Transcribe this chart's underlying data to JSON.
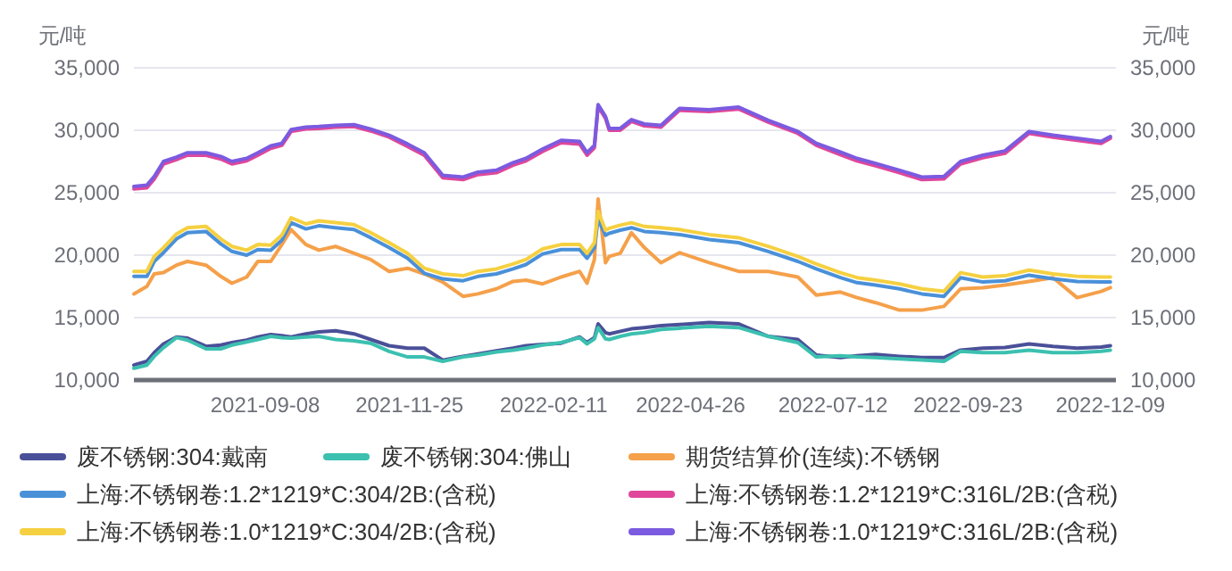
{
  "chart_data": {
    "type": "line",
    "ylabel": "元/吨",
    "y2label": "元/吨",
    "grid": "y",
    "legend": "bottom",
    "x": [
      "2021-06-29",
      "2021-07-06",
      "2021-07-10",
      "2021-07-15",
      "2021-07-22",
      "2021-07-28",
      "2021-08-07",
      "2021-08-15",
      "2021-08-21",
      "2021-08-29",
      "2021-09-04",
      "2021-09-11",
      "2021-09-17",
      "2021-09-22",
      "2021-09-30",
      "2021-10-07",
      "2021-10-16",
      "2021-10-26",
      "2021-11-04",
      "2021-11-14",
      "2021-11-24",
      "2021-12-03",
      "2021-12-13",
      "2021-12-24",
      "2022-01-01",
      "2022-01-11",
      "2022-01-20",
      "2022-01-27",
      "2022-02-05",
      "2022-02-15",
      "2022-02-25",
      "2022-03-01",
      "2022-03-05",
      "2022-03-07",
      "2022-03-11",
      "2022-03-13",
      "2022-03-19",
      "2022-03-25",
      "2022-04-01",
      "2022-04-10",
      "2022-04-20",
      "2022-05-06",
      "2022-05-22",
      "2022-06-07",
      "2022-06-23",
      "2022-07-03",
      "2022-07-16",
      "2022-07-25",
      "2022-08-04",
      "2022-08-17",
      "2022-08-29",
      "2022-09-10",
      "2022-09-19",
      "2022-10-01",
      "2022-10-13",
      "2022-10-26",
      "2022-11-08",
      "2022-11-21",
      "2022-12-04",
      "2022-12-09"
    ],
    "xlim": [
      "2021-06-29",
      "2022-12-12"
    ],
    "xticks": [
      "2021-09-08",
      "2021-11-25",
      "2022-02-11",
      "2022-04-26",
      "2022-07-12",
      "2022-09-23",
      "2022-12-09"
    ],
    "ylim": [
      10000,
      35000
    ],
    "yticks": [
      {
        "value": 10000,
        "label": "10,000"
      },
      {
        "value": 15000,
        "label": "15,000"
      },
      {
        "value": 20000,
        "label": "20,000"
      },
      {
        "value": 25000,
        "label": "25,000"
      },
      {
        "value": 30000,
        "label": "30,000"
      },
      {
        "value": 35000,
        "label": "35,000"
      }
    ],
    "y2lim": [
      10000,
      35000
    ],
    "y2ticks": [
      {
        "value": 10000,
        "label": "10,000"
      },
      {
        "value": 15000,
        "label": "15,000"
      },
      {
        "value": 20000,
        "label": "20,000"
      },
      {
        "value": 25000,
        "label": "25,000"
      },
      {
        "value": 30000,
        "label": "30,000"
      },
      {
        "value": 35000,
        "label": "35,000"
      }
    ],
    "series": [
      {
        "name": "废不锈钢:304:戴南",
        "color": "#4a5098",
        "values": [
          11200,
          11500,
          12200,
          12900,
          13450,
          13350,
          12700,
          12800,
          13000,
          13200,
          13450,
          13650,
          13550,
          13450,
          13700,
          13850,
          13950,
          13700,
          13250,
          12750,
          12550,
          12550,
          11600,
          11900,
          12100,
          12350,
          12550,
          12750,
          12850,
          12950,
          13450,
          13000,
          13400,
          14500,
          13800,
          13700,
          13900,
          14100,
          14200,
          14350,
          14450,
          14600,
          14500,
          13500,
          13250,
          12000,
          11800,
          11950,
          12050,
          11900,
          11800,
          11800,
          12400,
          12550,
          12600,
          12900,
          12700,
          12550,
          12650,
          12750
        ]
      },
      {
        "name": "废不锈钢:304:佛山",
        "color": "#3cc0b0",
        "values": [
          10950,
          11200,
          11900,
          12600,
          13400,
          13200,
          12500,
          12500,
          12800,
          13050,
          13250,
          13500,
          13400,
          13350,
          13450,
          13500,
          13250,
          13150,
          12950,
          12300,
          11850,
          11850,
          11500,
          11850,
          12000,
          12250,
          12400,
          12550,
          12800,
          13000,
          13400,
          12900,
          13300,
          14200,
          13300,
          13250,
          13500,
          13700,
          13800,
          14050,
          14150,
          14300,
          14200,
          13500,
          13000,
          11850,
          11950,
          11850,
          11800,
          11700,
          11600,
          11500,
          12300,
          12200,
          12200,
          12400,
          12200,
          12200,
          12300,
          12400
        ]
      },
      {
        "name": "期货结算价(连续):不锈钢",
        "color": "#f5a04a",
        "values": [
          16900,
          17500,
          18500,
          18600,
          19200,
          19500,
          19200,
          18300,
          17750,
          18250,
          19500,
          19500,
          20850,
          22050,
          20850,
          20400,
          20700,
          20150,
          19650,
          18700,
          18950,
          18500,
          17850,
          16700,
          16900,
          17300,
          17900,
          18000,
          17700,
          18250,
          18700,
          17750,
          19650,
          24500,
          19400,
          19900,
          20150,
          21800,
          20600,
          19400,
          20200,
          19400,
          18700,
          18700,
          18250,
          16800,
          17050,
          16600,
          16200,
          15600,
          15600,
          15900,
          17300,
          17400,
          17600,
          17900,
          18200,
          16600,
          17100,
          17400
        ]
      },
      {
        "name": "上海:不锈钢卷:1.2*1219*C:304/2B:(含税)",
        "color": "#4a90d9",
        "values": [
          18300,
          18300,
          19500,
          20200,
          21300,
          21800,
          21900,
          20900,
          20300,
          20000,
          20450,
          20400,
          21200,
          22600,
          22100,
          22350,
          22200,
          22050,
          21400,
          20600,
          19750,
          18550,
          18100,
          17950,
          18300,
          18500,
          18900,
          19250,
          20100,
          20450,
          20450,
          19750,
          20600,
          22900,
          21600,
          21750,
          22000,
          22200,
          21900,
          21800,
          21650,
          21250,
          21000,
          20300,
          19500,
          18900,
          18200,
          17800,
          17600,
          17300,
          16900,
          16700,
          18200,
          17850,
          17950,
          18400,
          18100,
          17900,
          17850,
          17850
        ]
      },
      {
        "name": "上海:不锈钢卷:1.2*1219*C:316L/2B:(含税)",
        "color": "#e0479a",
        "values": [
          25300,
          25400,
          26100,
          27300,
          27650,
          28000,
          28000,
          27700,
          27300,
          27550,
          28000,
          28550,
          28800,
          29900,
          30100,
          30150,
          30250,
          30300,
          29950,
          29450,
          28700,
          28000,
          26200,
          26050,
          26450,
          26600,
          27200,
          27550,
          28300,
          29000,
          28900,
          28000,
          28600,
          31900,
          30950,
          30000,
          30000,
          30700,
          30350,
          30250,
          31600,
          31500,
          31700,
          30650,
          29750,
          28800,
          28050,
          27550,
          27150,
          26600,
          26050,
          26100,
          27300,
          27800,
          28150,
          29750,
          29450,
          29200,
          28950,
          29350
        ]
      },
      {
        "name": "上海:不锈钢卷:1.0*1219*C:304/2B:(含税)",
        "color": "#f5d040",
        "values": [
          18700,
          18700,
          19900,
          20600,
          21700,
          22200,
          22300,
          21300,
          20700,
          20400,
          20850,
          20800,
          21600,
          23000,
          22500,
          22750,
          22600,
          22450,
          21800,
          21000,
          20150,
          18950,
          18500,
          18350,
          18700,
          18900,
          19300,
          19650,
          20500,
          20850,
          20850,
          20150,
          21000,
          23500,
          22000,
          22150,
          22400,
          22600,
          22300,
          22200,
          22050,
          21650,
          21400,
          20700,
          19900,
          19300,
          18600,
          18200,
          18000,
          17700,
          17300,
          17100,
          18600,
          18250,
          18350,
          18800,
          18500,
          18300,
          18250,
          18250
        ]
      },
      {
        "name": "上海:不锈钢卷:1.0*1219*C:316L/2B:(含税)",
        "color": "#7b5be0",
        "values": [
          25500,
          25600,
          26300,
          27500,
          27850,
          28200,
          28200,
          27900,
          27500,
          27750,
          28200,
          28750,
          28950,
          30050,
          30250,
          30300,
          30400,
          30450,
          30100,
          29600,
          28900,
          28200,
          26400,
          26250,
          26650,
          26800,
          27400,
          27750,
          28500,
          29200,
          29100,
          28200,
          28800,
          32050,
          31100,
          30150,
          30150,
          30850,
          30500,
          30400,
          31750,
          31650,
          31850,
          30800,
          29900,
          28950,
          28250,
          27750,
          27350,
          26800,
          26250,
          26300,
          27500,
          28000,
          28350,
          29900,
          29600,
          29350,
          29100,
          29500
        ]
      }
    ]
  }
}
